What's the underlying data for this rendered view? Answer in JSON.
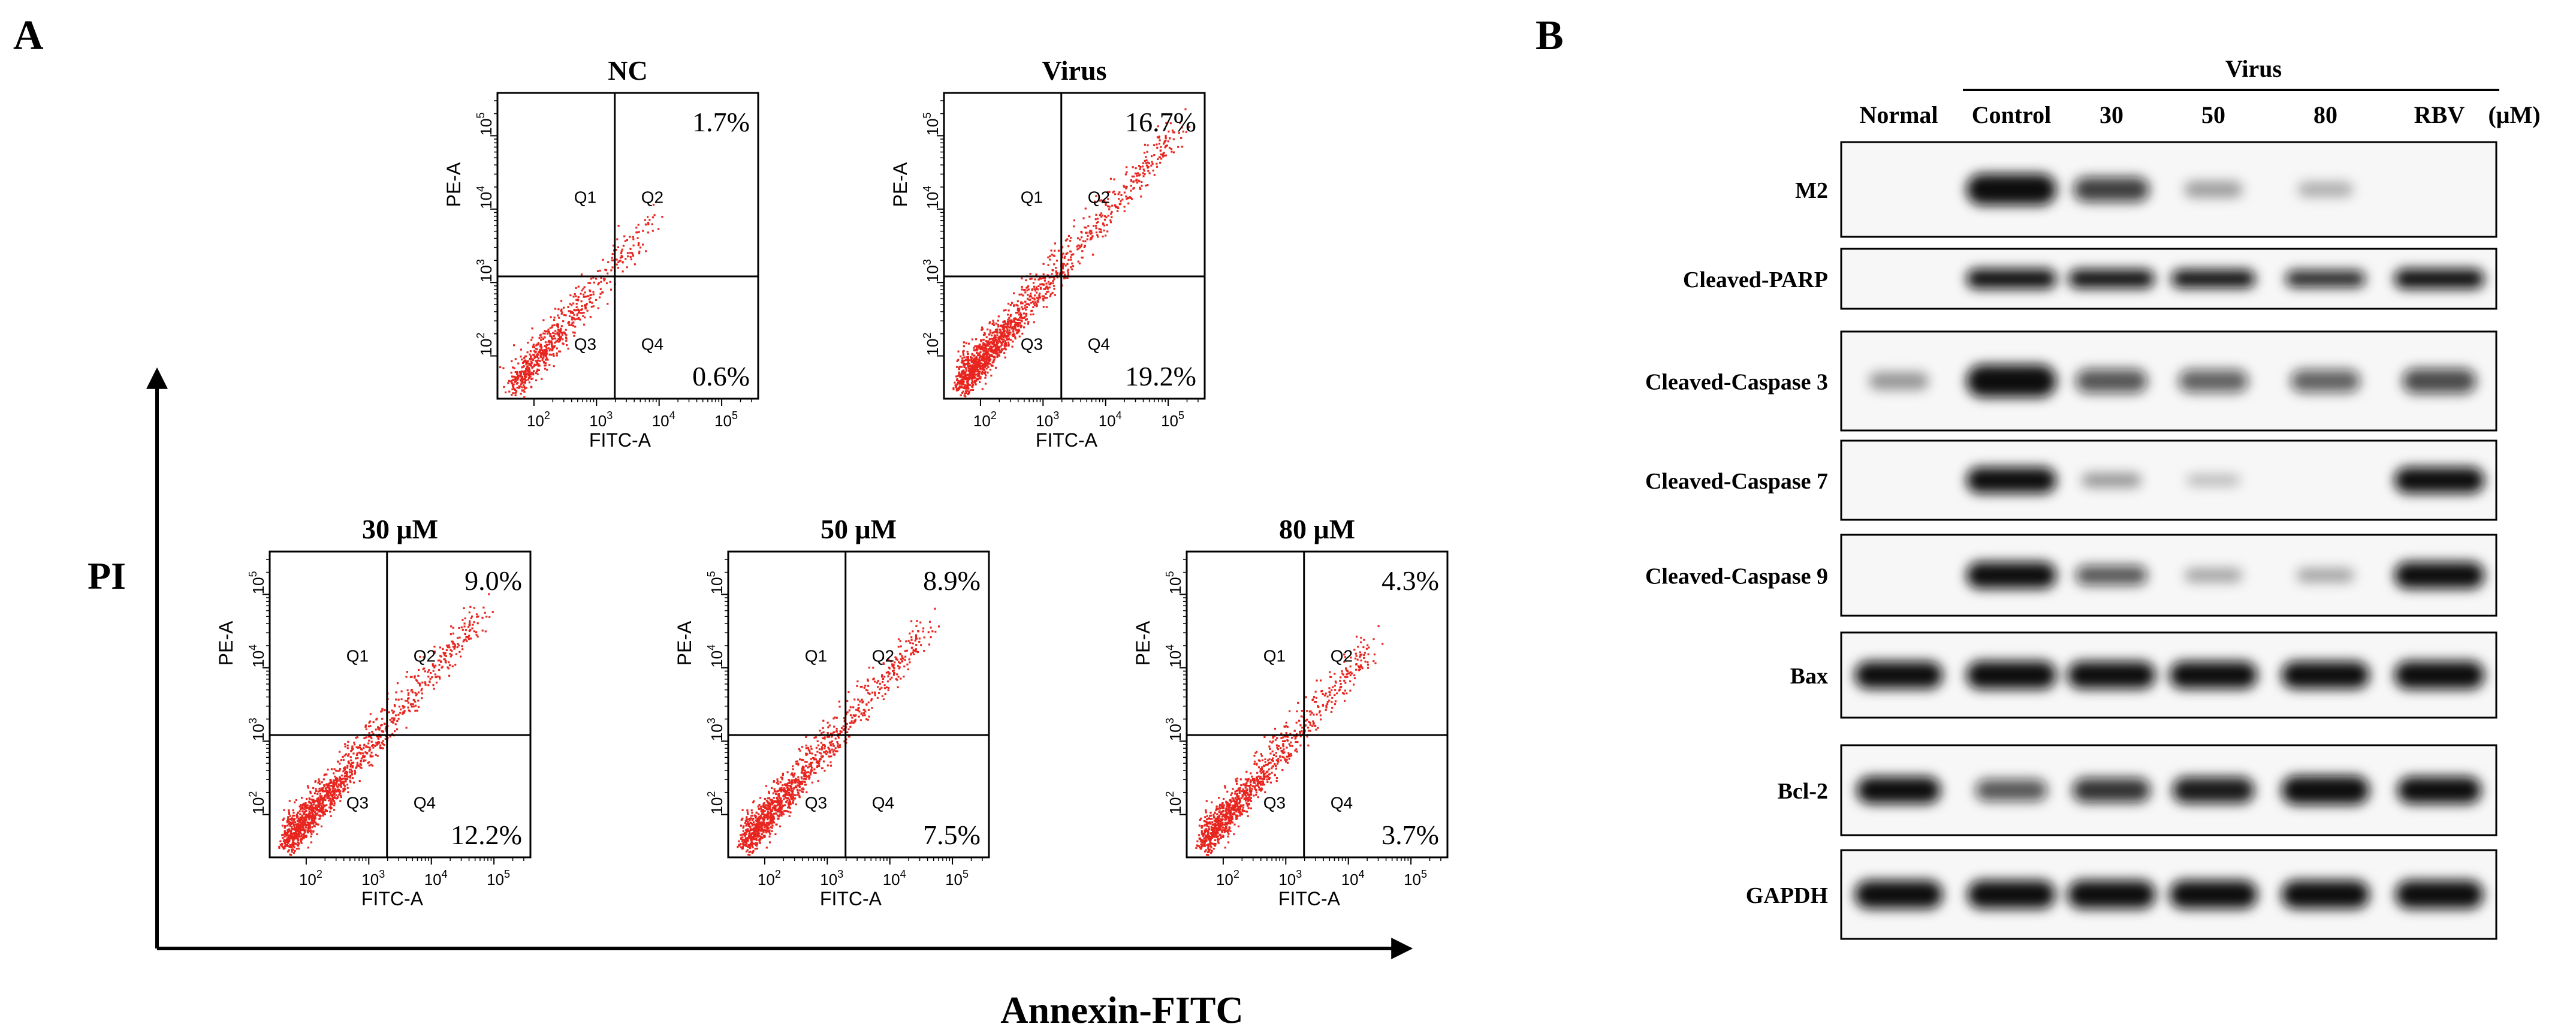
{
  "panel_a": {
    "letter": "A",
    "y_axis_label": "PI",
    "x_axis_label": "Annexin-FITC",
    "plots": [
      {
        "title": "NC",
        "x_axis": "FITC-A",
        "y_axis": "PE-A",
        "q2_pct": "1.7%",
        "q4_pct": "0.6%"
      },
      {
        "title": "Virus",
        "x_axis": "FITC-A",
        "y_axis": "PE-A",
        "q2_pct": "16.7%",
        "q4_pct": "19.2%"
      },
      {
        "title": "30 μM",
        "x_axis": "FITC-A",
        "y_axis": "PE-A",
        "q2_pct": "9.0%",
        "q4_pct": "12.2%"
      },
      {
        "title": "50 μM",
        "x_axis": "FITC-A",
        "y_axis": "PE-A",
        "q2_pct": "8.9%",
        "q4_pct": "7.5%"
      },
      {
        "title": "80 μM",
        "x_axis": "FITC-A",
        "y_axis": "PE-A",
        "q2_pct": "4.3%",
        "q4_pct": "3.7%"
      }
    ],
    "quadrant_labels": [
      "Q1",
      "Q2",
      "Q3",
      "Q4"
    ],
    "tick_labels": [
      "10",
      "2",
      "3",
      "4",
      "5"
    ]
  },
  "panel_b": {
    "letter": "B",
    "virus_label": "Virus",
    "unit": "(μM)",
    "lanes": [
      "Normal",
      "Control",
      "30",
      "50",
      "80",
      "RBV"
    ],
    "blots": [
      {
        "name": "M2",
        "intensity": [
          0.0,
          1.0,
          0.65,
          0.22,
          0.15,
          0.0
        ]
      },
      {
        "name": "Cleaved-PARP",
        "intensity": [
          0.0,
          1.0,
          0.9,
          0.85,
          0.75,
          1.0
        ]
      },
      {
        "name": "Cleaved-Caspase 3",
        "intensity": [
          0.25,
          1.0,
          0.55,
          0.5,
          0.5,
          0.6
        ]
      },
      {
        "name": "Cleaved-Caspase 7",
        "intensity": [
          0.0,
          1.0,
          0.25,
          0.1,
          0.0,
          1.0
        ]
      },
      {
        "name": "Cleaved-Caspase 9",
        "intensity": [
          0.0,
          1.0,
          0.55,
          0.2,
          0.2,
          1.0
        ]
      },
      {
        "name": "Bax",
        "intensity": [
          0.95,
          1.0,
          0.95,
          0.95,
          0.95,
          1.0
        ]
      },
      {
        "name": "Bcl-2",
        "intensity": [
          0.85,
          0.55,
          0.7,
          0.8,
          0.95,
          0.85
        ]
      },
      {
        "name": "GAPDH",
        "intensity": [
          0.95,
          0.95,
          0.95,
          0.95,
          0.95,
          0.95
        ]
      }
    ]
  },
  "colors": {
    "dots": "#e8251f",
    "ink": "#000000",
    "band": "#0d0d0d"
  }
}
